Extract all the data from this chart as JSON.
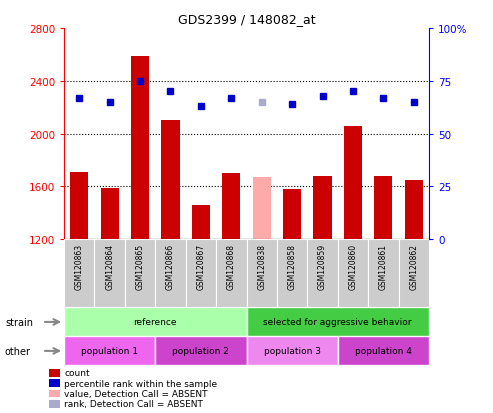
{
  "title": "GDS2399 / 148082_at",
  "samples": [
    "GSM120863",
    "GSM120864",
    "GSM120865",
    "GSM120866",
    "GSM120867",
    "GSM120868",
    "GSM120838",
    "GSM120858",
    "GSM120859",
    "GSM120860",
    "GSM120861",
    "GSM120862"
  ],
  "bar_values": [
    1710,
    1590,
    2590,
    2100,
    1460,
    1700,
    1670,
    1580,
    1680,
    2060,
    1680,
    1650
  ],
  "bar_absent": [
    false,
    false,
    false,
    false,
    false,
    false,
    true,
    false,
    false,
    false,
    false,
    false
  ],
  "dot_values": [
    67,
    65,
    75,
    70,
    63,
    67,
    65,
    64,
    68,
    70,
    67,
    65
  ],
  "dot_absent": [
    false,
    false,
    false,
    false,
    false,
    false,
    true,
    false,
    false,
    false,
    false,
    false
  ],
  "ylim_left": [
    1200,
    2800
  ],
  "ylim_right": [
    0,
    100
  ],
  "yticks_left": [
    1200,
    1600,
    2000,
    2400,
    2800
  ],
  "yticks_right": [
    0,
    25,
    50,
    75,
    100
  ],
  "bar_color_normal": "#cc0000",
  "bar_color_absent": "#ffaaaa",
  "dot_color_normal": "#0000cc",
  "dot_color_absent": "#aaaacc",
  "strain_groups": [
    {
      "label": "reference",
      "start": 0,
      "end": 6,
      "color": "#aaffaa"
    },
    {
      "label": "selected for aggressive behavior",
      "start": 6,
      "end": 12,
      "color": "#44cc44"
    }
  ],
  "other_groups": [
    {
      "label": "population 1",
      "start": 0,
      "end": 3,
      "color": "#ee66ee"
    },
    {
      "label": "population 2",
      "start": 3,
      "end": 6,
      "color": "#cc44cc"
    },
    {
      "label": "population 3",
      "start": 6,
      "end": 9,
      "color": "#ee88ee"
    },
    {
      "label": "population 4",
      "start": 9,
      "end": 12,
      "color": "#cc44cc"
    }
  ],
  "legend_items": [
    {
      "label": "count",
      "color": "#cc0000"
    },
    {
      "label": "percentile rank within the sample",
      "color": "#0000cc"
    },
    {
      "label": "value, Detection Call = ABSENT",
      "color": "#ffaaaa"
    },
    {
      "label": "rank, Detection Call = ABSENT",
      "color": "#aaaacc"
    }
  ]
}
